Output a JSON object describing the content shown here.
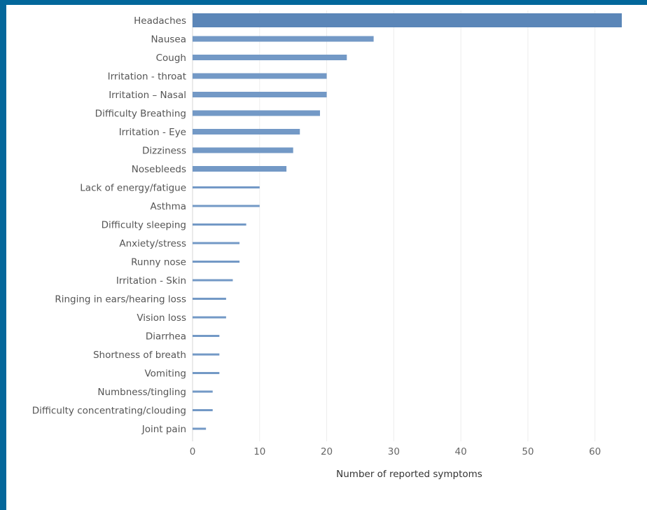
{
  "chart_data": {
    "type": "bar",
    "orientation": "horizontal",
    "categories": [
      "Headaches",
      "Nausea",
      "Cough",
      "Irritation - throat",
      "Irritation – Nasal",
      "Difficulty Breathing",
      "Irritation - Eye",
      "Dizziness",
      "Nosebleeds",
      "Lack of energy/fatigue",
      "Asthma",
      "Difficulty sleeping",
      "Anxiety/stress",
      "Runny nose",
      "Irritation - Skin",
      "Ringing in ears/hearing loss",
      "Vision loss",
      "Diarrhea",
      "Shortness of breath",
      "Vomiting",
      "Numbness/tingling",
      "Difficulty concentrating/clouding",
      "Joint pain"
    ],
    "values": [
      64,
      27,
      23,
      20,
      20,
      19,
      16,
      15,
      14,
      10,
      10,
      8,
      7,
      7,
      6,
      5,
      5,
      4,
      4,
      4,
      3,
      3,
      2
    ],
    "xlabel": "Number of reported symptoms",
    "ylabel": "",
    "xlim": [
      0,
      65
    ],
    "xticks": [
      0,
      10,
      20,
      30,
      40,
      50,
      60
    ],
    "grid": true,
    "bar_color": "#7399c6",
    "bar_color_dark": "#5b86b8",
    "legend": null
  }
}
